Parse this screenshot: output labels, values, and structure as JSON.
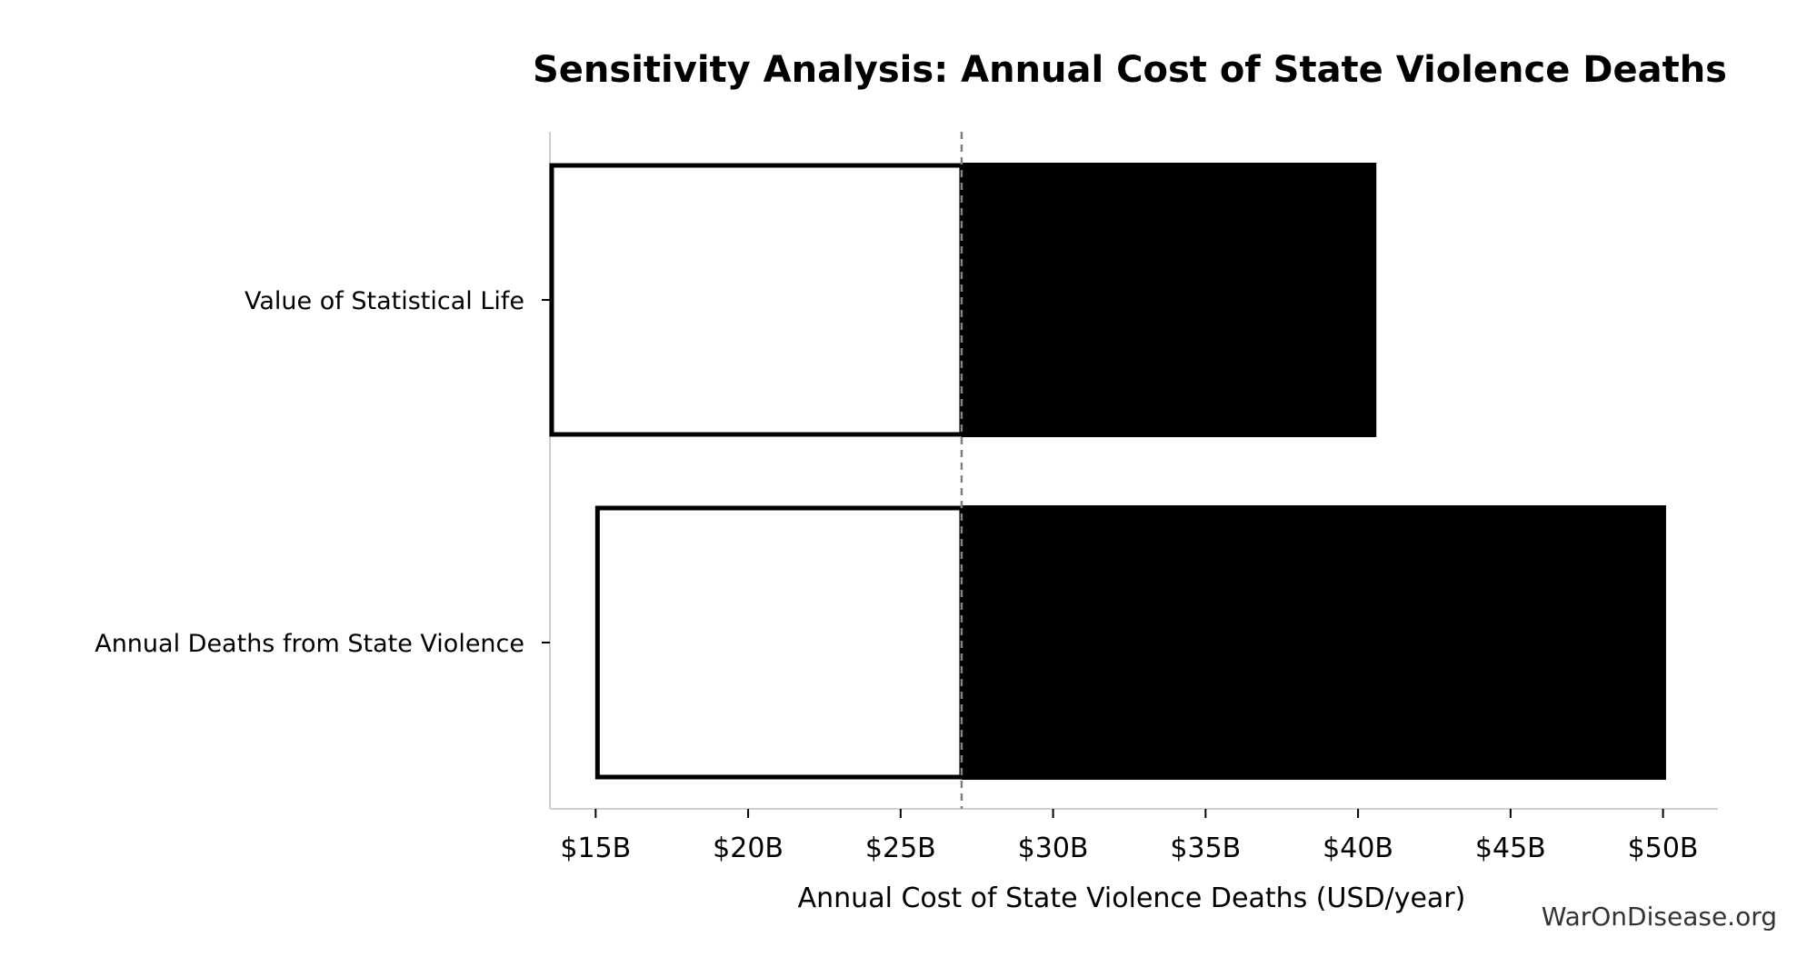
{
  "chart_data": {
    "type": "bar",
    "orientation": "horizontal",
    "subtype": "tornado",
    "title": "Sensitivity Analysis: Annual Cost of State Violence Deaths",
    "xlabel": "Annual Cost of State Violence Deaths (USD/year)",
    "ylabel": "",
    "xlim": [
      13.5,
      51.8
    ],
    "baseline": 27.0,
    "categories": [
      "Value of Statistical Life",
      "Annual Deaths from State Violence"
    ],
    "series": [
      {
        "name": "",
        "style": "outline",
        "low": [
          13.5,
          15.0
        ],
        "high": [
          27.0,
          27.0
        ]
      },
      {
        "name": "",
        "style": "filled",
        "low": [
          27.0,
          27.0
        ],
        "high": [
          40.6,
          50.1
        ]
      }
    ],
    "x_ticks": [
      15,
      20,
      25,
      30,
      35,
      40,
      45,
      50
    ],
    "x_tick_labels": [
      "$15B",
      "$20B",
      "$25B",
      "$30B",
      "$35B",
      "$40B",
      "$45B",
      "$50B"
    ],
    "grid": false,
    "colors": {
      "filled": "#000000",
      "outline_stroke": "#000000",
      "outline_fill": "#ffffff",
      "baseline": "#808080",
      "axis": "#d0d0d0"
    }
  },
  "watermark": "WarOnDisease.org"
}
